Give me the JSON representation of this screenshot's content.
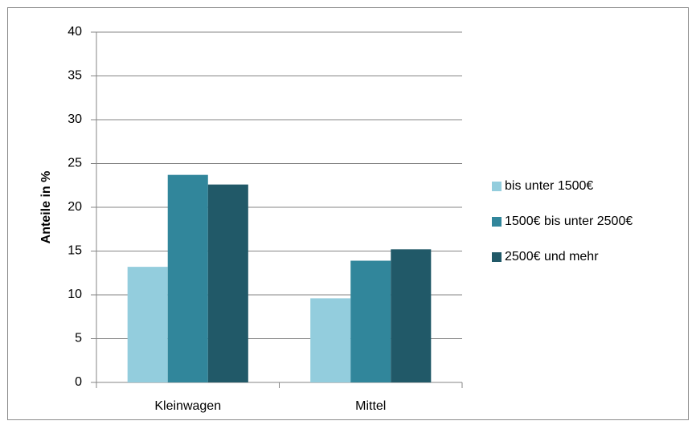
{
  "chart_data": {
    "type": "bar",
    "y_label": "Anteile in %",
    "categories": [
      "Kleinwagen",
      "Mittel"
    ],
    "series": [
      {
        "name": "bis unter 1500€",
        "color": "#93cddd",
        "values": [
          13.2,
          9.6
        ]
      },
      {
        "name": "1500€ bis unter 2500€",
        "color": "#31869b",
        "values": [
          23.7,
          13.9
        ]
      },
      {
        "name": "2500€ und mehr",
        "color": "#215968",
        "values": [
          22.6,
          15.2
        ]
      }
    ],
    "ylim": [
      0,
      40
    ],
    "yticks": [
      0,
      5,
      10,
      15,
      20,
      25,
      30,
      35,
      40
    ],
    "grid": true,
    "legend": "right"
  }
}
